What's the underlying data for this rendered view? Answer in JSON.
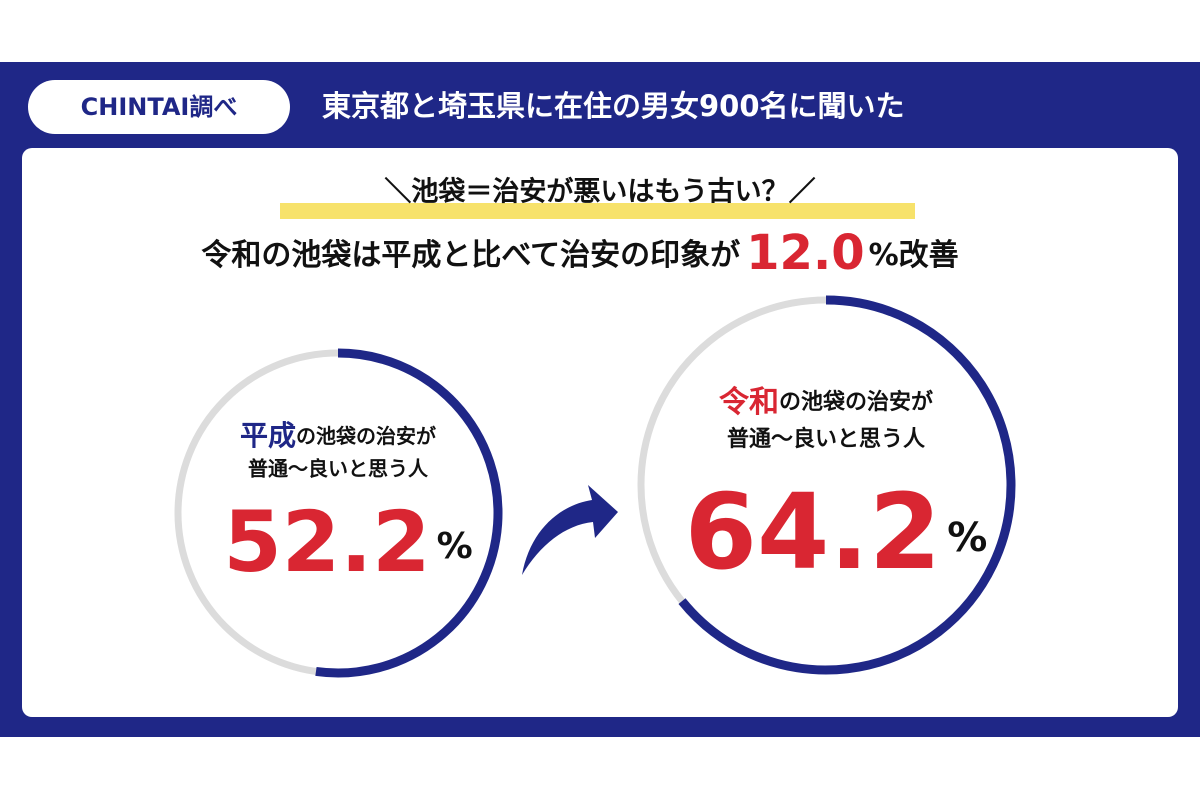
{
  "header": {
    "badge": "CHINTAI調べ",
    "title": "東京都と埼玉県に在住の男女900名に聞いた"
  },
  "headline": {
    "kicker": "＼池袋＝治安が悪いはもう古い？／",
    "lead": "令和の池袋は平成と比べて治安の印象が",
    "improvement": "12.0",
    "unit": "%",
    "tail": "改善"
  },
  "chart_data": [
    {
      "type": "progress",
      "highlight": "平成",
      "label": "の池袋の治安が",
      "label_line2": "普通〜良いと思う人",
      "value": 52.2,
      "unit": "%",
      "ylim": [
        0,
        100
      ],
      "color": "#1f2787",
      "highlight_color": "#1f2787",
      "track_color": "#dcdcdc"
    },
    {
      "type": "progress",
      "highlight": "令和",
      "label": "の池袋の治安が",
      "label_line2": "普通〜良いと思う人",
      "value": 64.2,
      "unit": "%",
      "ylim": [
        0,
        100
      ],
      "color": "#1f2787",
      "highlight_color": "#d92632",
      "track_color": "#dcdcdc"
    }
  ]
}
